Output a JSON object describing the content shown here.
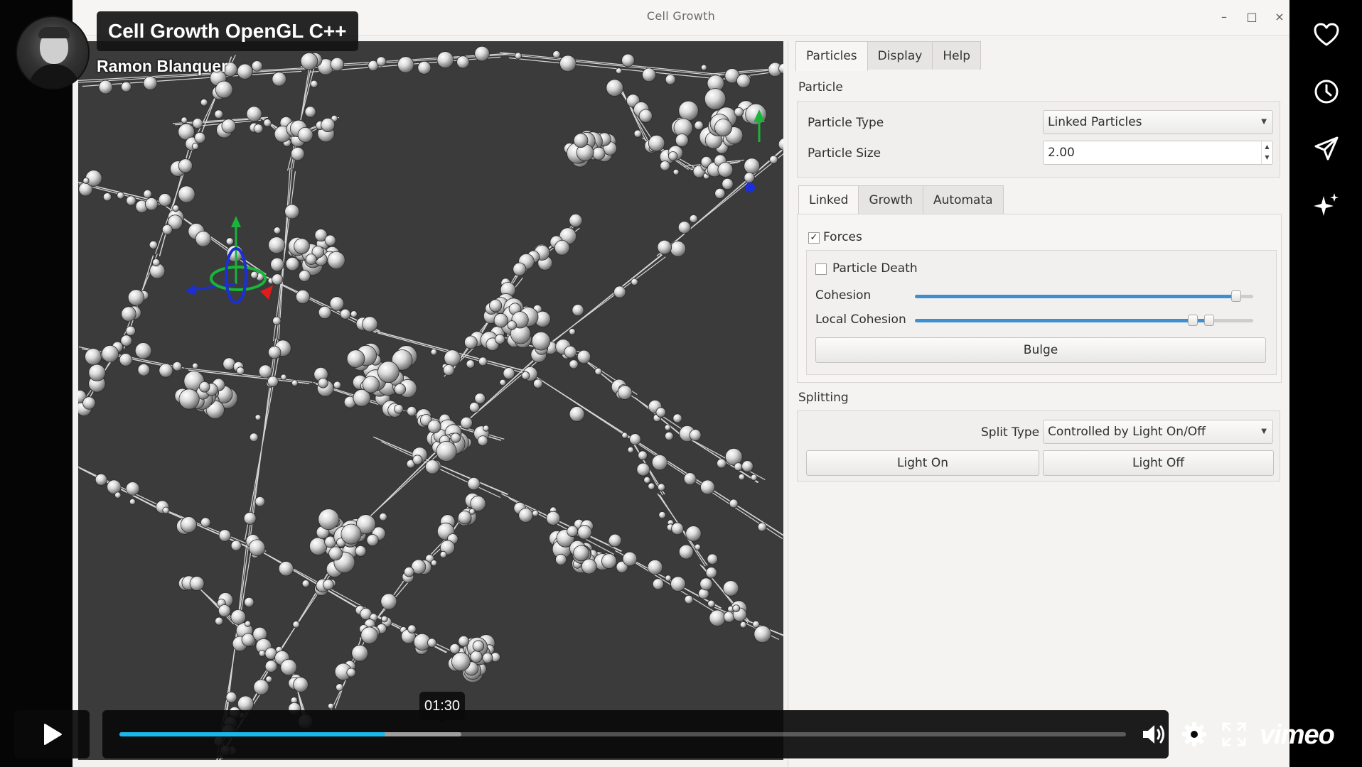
{
  "video": {
    "title": "Cell Growth OpenGL C++",
    "author": "Ramon Blanquer",
    "hover_time": "01:30",
    "progress": 0.264,
    "buffered": 0.34,
    "brand": "vimeo",
    "accent_color": "#1ab7ea"
  },
  "app": {
    "window_title": "Cell Growth",
    "window_controls": [
      "minimize",
      "maximize",
      "close"
    ],
    "main_tabs": [
      "Particles",
      "Display",
      "Help"
    ],
    "active_main_tab": "Particles",
    "particle_section": {
      "label": "Particle",
      "type_label": "Particle Type",
      "type_value": "Linked Particles",
      "size_label": "Particle Size",
      "size_value": "2.00"
    },
    "sub_tabs": [
      "Linked",
      "Growth",
      "Automata"
    ],
    "active_sub_tab": "Linked",
    "linked": {
      "forces_label": "Forces",
      "forces_checked": true,
      "death_label": "Particle Death",
      "death_checked": false,
      "cohesion_label": "Cohesion",
      "cohesion_value": 0.95,
      "local_cohesion_label": "Local Cohesion",
      "local_cohesion_value": 0.87,
      "bulge_label": "Bulge"
    },
    "splitting": {
      "label": "Splitting",
      "split_type_label": "Split Type",
      "split_type_value": "Controlled by Light On/Off",
      "light_on_label": "Light On",
      "light_off_label": "Light Off"
    }
  },
  "actions": [
    "like-icon",
    "watch-later-icon",
    "share-icon",
    "ai-summary-icon"
  ],
  "controls": [
    "play-icon",
    "volume-icon",
    "settings-icon",
    "fullscreen-icon"
  ]
}
